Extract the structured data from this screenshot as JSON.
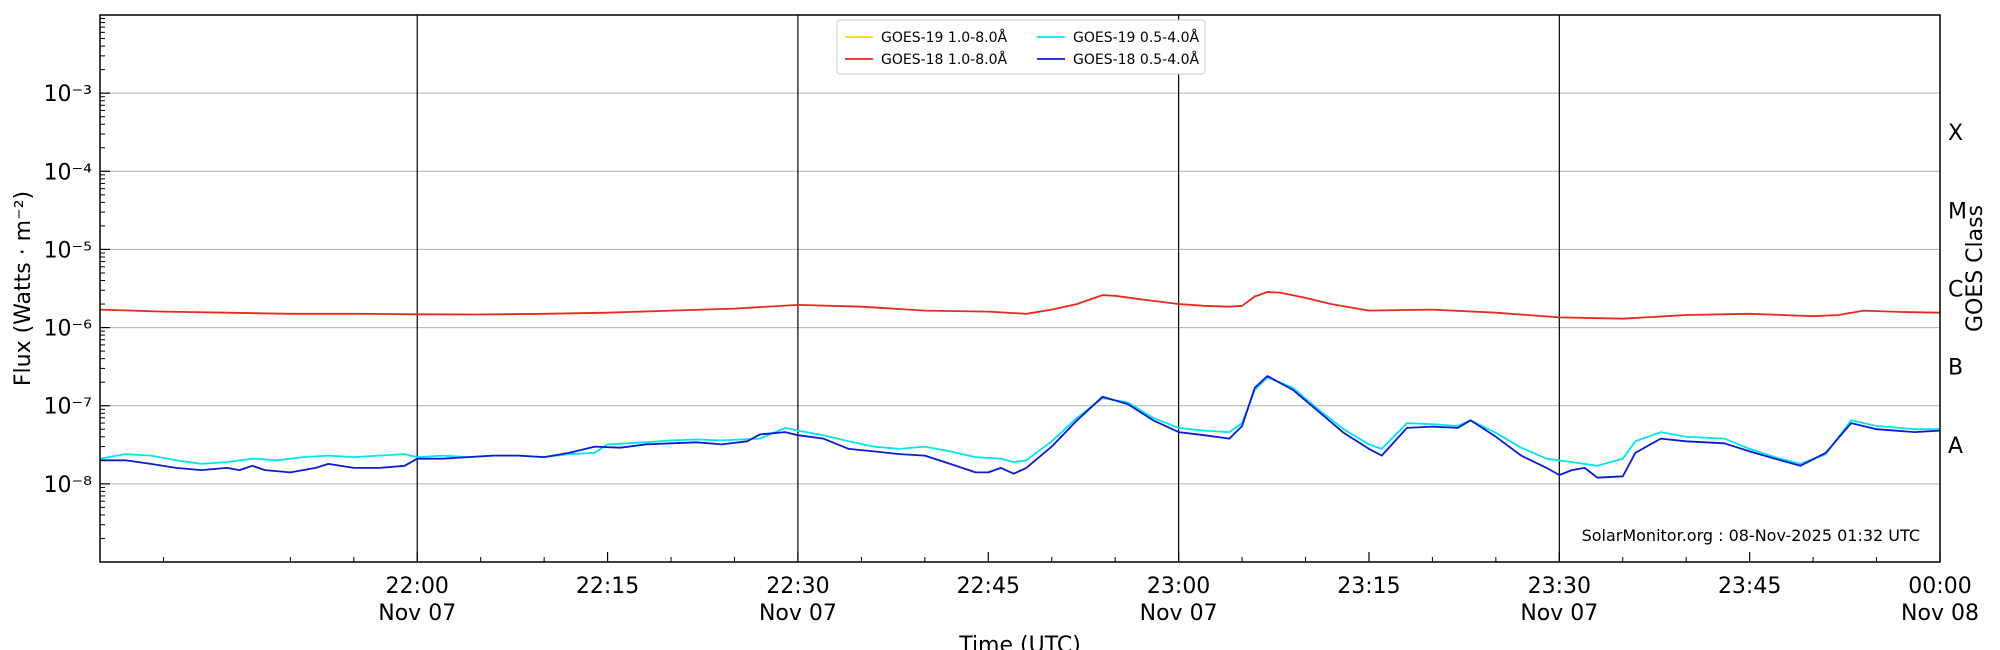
{
  "chart_data": {
    "type": "line",
    "title": "",
    "xlabel": "Time (UTC)",
    "ylabel": "Flux (Watts · m⁻²)",
    "y2label": "GOES Class",
    "yscale": "log",
    "ylim": [
      1e-09,
      0.01
    ],
    "xlim": [
      "21:35",
      "00:00"
    ],
    "grid": "horizontal at decades",
    "legend_position": "top-center",
    "y_ticks": [
      {
        "value": 1e-08,
        "label": "10⁻⁸"
      },
      {
        "value": 1e-07,
        "label": "10⁻⁷"
      },
      {
        "value": 1e-06,
        "label": "10⁻⁶"
      },
      {
        "value": 1e-05,
        "label": "10⁻⁵"
      },
      {
        "value": 0.0001,
        "label": "10⁻⁴"
      },
      {
        "value": 0.001,
        "label": "10⁻³"
      }
    ],
    "x_ticks": [
      {
        "time": "22:00",
        "label1": "22:00",
        "label2": "Nov 07",
        "vline": true
      },
      {
        "time": "22:15",
        "label1": "22:15",
        "label2": "",
        "vline": false
      },
      {
        "time": "22:30",
        "label1": "22:30",
        "label2": "Nov 07",
        "vline": true
      },
      {
        "time": "22:45",
        "label1": "22:45",
        "label2": "",
        "vline": false
      },
      {
        "time": "23:00",
        "label1": "23:00",
        "label2": "Nov 07",
        "vline": true
      },
      {
        "time": "23:15",
        "label1": "23:15",
        "label2": "",
        "vline": false
      },
      {
        "time": "23:30",
        "label1": "23:30",
        "label2": "Nov 07",
        "vline": true
      },
      {
        "time": "23:45",
        "label1": "23:45",
        "label2": "",
        "vline": false
      },
      {
        "time": "00:00",
        "label1": "00:00",
        "label2": "Nov 08",
        "vline": false
      }
    ],
    "goes_classes": [
      {
        "label": "X",
        "value": 0.000316
      },
      {
        "label": "M",
        "value": 3.16e-05
      },
      {
        "label": "C",
        "value": 3.16e-06
      },
      {
        "label": "B",
        "value": 3.16e-07
      },
      {
        "label": "A",
        "value": 3.16e-08
      }
    ],
    "series": [
      {
        "name": "GOES-19 1.0-8.0Å",
        "color": "#ffd700",
        "points": []
      },
      {
        "name": "GOES-18 1.0-8.0Å",
        "color": "#e8291c",
        "points": [
          [
            "21:35",
            1.7e-06
          ],
          [
            "21:40",
            1.6e-06
          ],
          [
            "21:45",
            1.55e-06
          ],
          [
            "21:50",
            1.5e-06
          ],
          [
            "21:55",
            1.5e-06
          ],
          [
            "22:00",
            1.48e-06
          ],
          [
            "22:05",
            1.47e-06
          ],
          [
            "22:10",
            1.5e-06
          ],
          [
            "22:15",
            1.55e-06
          ],
          [
            "22:20",
            1.65e-06
          ],
          [
            "22:25",
            1.75e-06
          ],
          [
            "22:30",
            1.95e-06
          ],
          [
            "22:35",
            1.85e-06
          ],
          [
            "22:40",
            1.65e-06
          ],
          [
            "22:45",
            1.6e-06
          ],
          [
            "22:48",
            1.5e-06
          ],
          [
            "22:50",
            1.7e-06
          ],
          [
            "22:52",
            2e-06
          ],
          [
            "22:54",
            2.6e-06
          ],
          [
            "22:55",
            2.55e-06
          ],
          [
            "22:57",
            2.3e-06
          ],
          [
            "23:00",
            2e-06
          ],
          [
            "23:02",
            1.9e-06
          ],
          [
            "23:04",
            1.85e-06
          ],
          [
            "23:05",
            1.9e-06
          ],
          [
            "23:06",
            2.5e-06
          ],
          [
            "23:07",
            2.85e-06
          ],
          [
            "23:08",
            2.8e-06
          ],
          [
            "23:10",
            2.4e-06
          ],
          [
            "23:12",
            2e-06
          ],
          [
            "23:15",
            1.65e-06
          ],
          [
            "23:20",
            1.7e-06
          ],
          [
            "23:25",
            1.55e-06
          ],
          [
            "23:30",
            1.35e-06
          ],
          [
            "23:35",
            1.3e-06
          ],
          [
            "23:40",
            1.45e-06
          ],
          [
            "23:45",
            1.5e-06
          ],
          [
            "23:50",
            1.4e-06
          ],
          [
            "23:52",
            1.45e-06
          ],
          [
            "23:54",
            1.65e-06
          ],
          [
            "23:57",
            1.58e-06
          ],
          [
            "00:00",
            1.55e-06
          ]
        ]
      },
      {
        "name": "GOES-19 0.5-4.0Å",
        "color": "#00e5ee",
        "points": [
          [
            "21:35",
            2.1e-08
          ],
          [
            "21:37",
            2.4e-08
          ],
          [
            "21:39",
            2.3e-08
          ],
          [
            "21:41",
            2e-08
          ],
          [
            "21:43",
            1.8e-08
          ],
          [
            "21:45",
            1.9e-08
          ],
          [
            "21:47",
            2.1e-08
          ],
          [
            "21:49",
            2e-08
          ],
          [
            "21:51",
            2.2e-08
          ],
          [
            "21:53",
            2.3e-08
          ],
          [
            "21:55",
            2.2e-08
          ],
          [
            "21:57",
            2.3e-08
          ],
          [
            "21:59",
            2.4e-08
          ],
          [
            "22:00",
            2.2e-08
          ],
          [
            "22:02",
            2.3e-08
          ],
          [
            "22:04",
            2.2e-08
          ],
          [
            "22:06",
            2.3e-08
          ],
          [
            "22:08",
            2.3e-08
          ],
          [
            "22:10",
            2.2e-08
          ],
          [
            "22:12",
            2.4e-08
          ],
          [
            "22:14",
            2.5e-08
          ],
          [
            "22:15",
            3.2e-08
          ],
          [
            "22:18",
            3.4e-08
          ],
          [
            "22:20",
            3.6e-08
          ],
          [
            "22:22",
            3.7e-08
          ],
          [
            "22:24",
            3.6e-08
          ],
          [
            "22:27",
            3.8e-08
          ],
          [
            "22:29",
            5.2e-08
          ],
          [
            "22:30",
            4.8e-08
          ],
          [
            "22:32",
            4.2e-08
          ],
          [
            "22:34",
            3.5e-08
          ],
          [
            "22:36",
            3e-08
          ],
          [
            "22:38",
            2.8e-08
          ],
          [
            "22:40",
            3e-08
          ],
          [
            "22:42",
            2.6e-08
          ],
          [
            "22:44",
            2.2e-08
          ],
          [
            "22:46",
            2.1e-08
          ],
          [
            "22:47",
            1.9e-08
          ],
          [
            "22:48",
            2e-08
          ],
          [
            "22:50",
            3.5e-08
          ],
          [
            "22:52",
            7e-08
          ],
          [
            "22:54",
            1.25e-07
          ],
          [
            "22:56",
            1.1e-07
          ],
          [
            "22:58",
            7e-08
          ],
          [
            "23:00",
            5.2e-08
          ],
          [
            "23:02",
            4.8e-08
          ],
          [
            "23:04",
            4.6e-08
          ],
          [
            "23:05",
            6e-08
          ],
          [
            "23:06",
            1.6e-07
          ],
          [
            "23:07",
            2.3e-07
          ],
          [
            "23:09",
            1.7e-07
          ],
          [
            "23:11",
            9e-08
          ],
          [
            "23:13",
            5e-08
          ],
          [
            "23:15",
            3.2e-08
          ],
          [
            "23:16",
            2.8e-08
          ],
          [
            "23:18",
            6e-08
          ],
          [
            "23:20",
            5.8e-08
          ],
          [
            "23:22",
            5.5e-08
          ],
          [
            "23:23",
            6.5e-08
          ],
          [
            "23:25",
            4.5e-08
          ],
          [
            "23:27",
            2.9e-08
          ],
          [
            "23:29",
            2.1e-08
          ],
          [
            "23:31",
            1.9e-08
          ],
          [
            "23:33",
            1.7e-08
          ],
          [
            "23:35",
            2.1e-08
          ],
          [
            "23:36",
            3.5e-08
          ],
          [
            "23:38",
            4.6e-08
          ],
          [
            "23:40",
            4e-08
          ],
          [
            "23:43",
            3.8e-08
          ],
          [
            "23:45",
            2.8e-08
          ],
          [
            "23:47",
            2.2e-08
          ],
          [
            "23:49",
            1.8e-08
          ],
          [
            "23:51",
            2.4e-08
          ],
          [
            "23:53",
            6.5e-08
          ],
          [
            "23:55",
            5.5e-08
          ],
          [
            "23:58",
            5e-08
          ],
          [
            "00:00",
            5e-08
          ]
        ]
      },
      {
        "name": "GOES-18 0.5-4.0Å",
        "color": "#0a1ccf",
        "points": [
          [
            "21:35",
            2e-08
          ],
          [
            "21:37",
            2e-08
          ],
          [
            "21:39",
            1.8e-08
          ],
          [
            "21:41",
            1.6e-08
          ],
          [
            "21:43",
            1.5e-08
          ],
          [
            "21:45",
            1.6e-08
          ],
          [
            "21:46",
            1.5e-08
          ],
          [
            "21:47",
            1.7e-08
          ],
          [
            "21:48",
            1.5e-08
          ],
          [
            "21:50",
            1.4e-08
          ],
          [
            "21:52",
            1.6e-08
          ],
          [
            "21:53",
            1.8e-08
          ],
          [
            "21:55",
            1.6e-08
          ],
          [
            "21:57",
            1.6e-08
          ],
          [
            "21:59",
            1.7e-08
          ],
          [
            "22:00",
            2.1e-08
          ],
          [
            "22:02",
            2.1e-08
          ],
          [
            "22:04",
            2.2e-08
          ],
          [
            "22:06",
            2.3e-08
          ],
          [
            "22:08",
            2.3e-08
          ],
          [
            "22:10",
            2.2e-08
          ],
          [
            "22:12",
            2.5e-08
          ],
          [
            "22:14",
            3e-08
          ],
          [
            "22:16",
            2.9e-08
          ],
          [
            "22:18",
            3.2e-08
          ],
          [
            "22:20",
            3.3e-08
          ],
          [
            "22:22",
            3.4e-08
          ],
          [
            "22:24",
            3.2e-08
          ],
          [
            "22:26",
            3.5e-08
          ],
          [
            "22:27",
            4.3e-08
          ],
          [
            "22:29",
            4.6e-08
          ],
          [
            "22:30",
            4.2e-08
          ],
          [
            "22:32",
            3.8e-08
          ],
          [
            "22:34",
            2.8e-08
          ],
          [
            "22:36",
            2.6e-08
          ],
          [
            "22:38",
            2.4e-08
          ],
          [
            "22:40",
            2.3e-08
          ],
          [
            "22:42",
            1.8e-08
          ],
          [
            "22:44",
            1.4e-08
          ],
          [
            "22:45",
            1.4e-08
          ],
          [
            "22:46",
            1.6e-08
          ],
          [
            "22:47",
            1.35e-08
          ],
          [
            "22:48",
            1.6e-08
          ],
          [
            "22:50",
            3e-08
          ],
          [
            "22:52",
            6.5e-08
          ],
          [
            "22:54",
            1.3e-07
          ],
          [
            "22:56",
            1.05e-07
          ],
          [
            "22:58",
            6.5e-08
          ],
          [
            "23:00",
            4.6e-08
          ],
          [
            "23:02",
            4.2e-08
          ],
          [
            "23:04",
            3.8e-08
          ],
          [
            "23:05",
            5.5e-08
          ],
          [
            "23:06",
            1.7e-07
          ],
          [
            "23:07",
            2.4e-07
          ],
          [
            "23:09",
            1.6e-07
          ],
          [
            "23:11",
            8.5e-08
          ],
          [
            "23:13",
            4.5e-08
          ],
          [
            "23:15",
            2.8e-08
          ],
          [
            "23:16",
            2.3e-08
          ],
          [
            "23:18",
            5.2e-08
          ],
          [
            "23:20",
            5.4e-08
          ],
          [
            "23:22",
            5.2e-08
          ],
          [
            "23:23",
            6.5e-08
          ],
          [
            "23:25",
            4e-08
          ],
          [
            "23:27",
            2.3e-08
          ],
          [
            "23:29",
            1.6e-08
          ],
          [
            "23:30",
            1.3e-08
          ],
          [
            "23:31",
            1.5e-08
          ],
          [
            "23:32",
            1.6e-08
          ],
          [
            "23:33",
            1.2e-08
          ],
          [
            "23:35",
            1.25e-08
          ],
          [
            "23:36",
            2.5e-08
          ],
          [
            "23:38",
            3.8e-08
          ],
          [
            "23:40",
            3.5e-08
          ],
          [
            "23:43",
            3.3e-08
          ],
          [
            "23:45",
            2.6e-08
          ],
          [
            "23:47",
            2.1e-08
          ],
          [
            "23:49",
            1.7e-08
          ],
          [
            "23:51",
            2.5e-08
          ],
          [
            "23:53",
            6e-08
          ],
          [
            "23:55",
            5e-08
          ],
          [
            "23:58",
            4.6e-08
          ],
          [
            "00:00",
            4.8e-08
          ]
        ]
      }
    ],
    "annotation": "SolarMonitor.org : 08-Nov-2025 01:32 UTC"
  }
}
